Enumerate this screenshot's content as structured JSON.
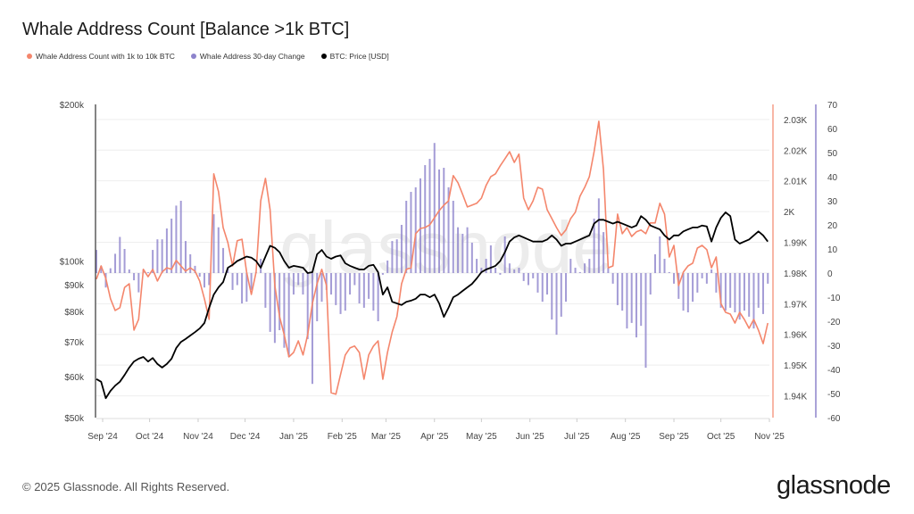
{
  "header": {
    "title": "Whale Address Count [Balance >1k BTC]"
  },
  "legend": [
    {
      "label": "Whale Address Count with 1k to 10k BTC",
      "color": "#f4866c"
    },
    {
      "label": "Whale Address 30-day Change",
      "color": "#8d83cc"
    },
    {
      "label": "BTC: Price [USD]",
      "color": "#000000"
    }
  ],
  "footer": {
    "copyright": "© 2025 Glassnode. All Rights Reserved.",
    "logo": "glassnode",
    "watermark": "glassnode"
  },
  "chart_data": {
    "type": "line+bar",
    "title": "Whale Address Count [Balance >1k BTC]",
    "grid": true,
    "legend_position": "top-left",
    "x_ticks": [
      {
        "date": "2024-09-01",
        "label": "Sep '24"
      },
      {
        "date": "2024-10-01",
        "label": "Oct '24"
      },
      {
        "date": "2024-11-01",
        "label": "Nov '24"
      },
      {
        "date": "2024-12-01",
        "label": "Dec '24"
      },
      {
        "date": "2025-01-01",
        "label": "Jan '25"
      },
      {
        "date": "2025-02-01",
        "label": "Feb '25"
      },
      {
        "date": "2025-03-01",
        "label": "Mar '25"
      },
      {
        "date": "2025-04-01",
        "label": "Apr '25"
      },
      {
        "date": "2025-05-01",
        "label": "May '25"
      },
      {
        "date": "2025-06-01",
        "label": "Jun '25"
      },
      {
        "date": "2025-07-01",
        "label": "Jul '25"
      },
      {
        "date": "2025-08-01",
        "label": "Aug '25"
      },
      {
        "date": "2025-09-01",
        "label": "Sep '25"
      },
      {
        "date": "2025-10-01",
        "label": "Oct '25"
      },
      {
        "date": "2025-11-01",
        "label": "Nov '25"
      }
    ],
    "xlim": [
      "2024-08-28",
      "2025-11-01"
    ],
    "axes": {
      "price": {
        "scale": "log",
        "range": [
          50000,
          200000
        ],
        "color": "#000000",
        "ticks": [
          {
            "v": 200000,
            "label": "$200k"
          },
          {
            "v": 100000,
            "label": "$100k"
          },
          {
            "v": 90000,
            "label": "$90k"
          },
          {
            "v": 80000,
            "label": "$80k"
          },
          {
            "v": 70000,
            "label": "$70k"
          },
          {
            "v": 60000,
            "label": "$60k"
          },
          {
            "v": 50000,
            "label": "$50k"
          }
        ]
      },
      "count": {
        "scale": "linear",
        "range": [
          1932.9,
          2034.9
        ],
        "color": "#f4866c",
        "ticks": [
          {
            "v": 2030,
            "label": "2.03K"
          },
          {
            "v": 2020,
            "label": "2.02K"
          },
          {
            "v": 2010,
            "label": "2.01K"
          },
          {
            "v": 2000,
            "label": "2K"
          },
          {
            "v": 1990,
            "label": "1.99K"
          },
          {
            "v": 1980,
            "label": "1.98K"
          },
          {
            "v": 1970,
            "label": "1.97K"
          },
          {
            "v": 1960,
            "label": "1.96K"
          },
          {
            "v": 1950,
            "label": "1.95K"
          },
          {
            "v": 1940,
            "label": "1.94K"
          }
        ]
      },
      "change": {
        "scale": "linear",
        "range": [
          -60,
          70
        ],
        "color": "#8d83cc",
        "ticks": [
          {
            "v": 70,
            "label": "70"
          },
          {
            "v": 60,
            "label": "60"
          },
          {
            "v": 50,
            "label": "50"
          },
          {
            "v": 40,
            "label": "40"
          },
          {
            "v": 30,
            "label": "30"
          },
          {
            "v": 20,
            "label": "20"
          },
          {
            "v": 10,
            "label": "10"
          },
          {
            "v": 0,
            "label": "0"
          },
          {
            "v": -10,
            "label": "-10"
          },
          {
            "v": -20,
            "label": "-20"
          },
          {
            "v": -30,
            "label": "-30"
          },
          {
            "v": -40,
            "label": "-40"
          },
          {
            "v": -50,
            "label": "-50"
          },
          {
            "v": -60,
            "label": "-60"
          }
        ]
      }
    },
    "dates": [
      "2024-08-28",
      "2024-08-31",
      "2024-09-03",
      "2024-09-06",
      "2024-09-09",
      "2024-09-12",
      "2024-09-15",
      "2024-09-18",
      "2024-09-21",
      "2024-09-24",
      "2024-09-27",
      "2024-09-30",
      "2024-10-03",
      "2024-10-06",
      "2024-10-09",
      "2024-10-12",
      "2024-10-15",
      "2024-10-18",
      "2024-10-21",
      "2024-10-24",
      "2024-10-27",
      "2024-10-30",
      "2024-11-02",
      "2024-11-05",
      "2024-11-08",
      "2024-11-11",
      "2024-11-14",
      "2024-11-17",
      "2024-11-20",
      "2024-11-23",
      "2024-11-26",
      "2024-11-29",
      "2024-12-02",
      "2024-12-05",
      "2024-12-08",
      "2024-12-11",
      "2024-12-14",
      "2024-12-17",
      "2024-12-20",
      "2024-12-23",
      "2024-12-26",
      "2024-12-29",
      "2025-01-01",
      "2025-01-04",
      "2025-01-07",
      "2025-01-10",
      "2025-01-13",
      "2025-01-16",
      "2025-01-19",
      "2025-01-22",
      "2025-01-25",
      "2025-01-28",
      "2025-01-31",
      "2025-02-03",
      "2025-02-06",
      "2025-02-09",
      "2025-02-12",
      "2025-02-15",
      "2025-02-18",
      "2025-02-21",
      "2025-02-24",
      "2025-02-27",
      "2025-03-02",
      "2025-03-05",
      "2025-03-08",
      "2025-03-11",
      "2025-03-14",
      "2025-03-17",
      "2025-03-20",
      "2025-03-23",
      "2025-03-26",
      "2025-03-29",
      "2025-04-01",
      "2025-04-04",
      "2025-04-07",
      "2025-04-10",
      "2025-04-13",
      "2025-04-16",
      "2025-04-19",
      "2025-04-22",
      "2025-04-25",
      "2025-04-28",
      "2025-05-01",
      "2025-05-04",
      "2025-05-07",
      "2025-05-10",
      "2025-05-13",
      "2025-05-16",
      "2025-05-19",
      "2025-05-22",
      "2025-05-25",
      "2025-05-28",
      "2025-05-31",
      "2025-06-03",
      "2025-06-06",
      "2025-06-09",
      "2025-06-12",
      "2025-06-15",
      "2025-06-18",
      "2025-06-21",
      "2025-06-24",
      "2025-06-27",
      "2025-06-30",
      "2025-07-03",
      "2025-07-06",
      "2025-07-09",
      "2025-07-12",
      "2025-07-15",
      "2025-07-18",
      "2025-07-21",
      "2025-07-24",
      "2025-07-27",
      "2025-07-30",
      "2025-08-02",
      "2025-08-05",
      "2025-08-08",
      "2025-08-11",
      "2025-08-14",
      "2025-08-17",
      "2025-08-20",
      "2025-08-23",
      "2025-08-26",
      "2025-08-29",
      "2025-09-01",
      "2025-09-04",
      "2025-09-07",
      "2025-09-10",
      "2025-09-13",
      "2025-09-16",
      "2025-09-19",
      "2025-09-22",
      "2025-09-25",
      "2025-09-28",
      "2025-10-01",
      "2025-10-04",
      "2025-10-07",
      "2025-10-10",
      "2025-10-13",
      "2025-10-16",
      "2025-10-19",
      "2025-10-22",
      "2025-10-25",
      "2025-10-28",
      "2025-10-31"
    ],
    "series": [
      {
        "name": "Whale Address 30-day Change",
        "axis": "change",
        "kind": "bar",
        "color": "#8d83cc",
        "values": [
          9.6,
          3,
          -6,
          2,
          8,
          15,
          10,
          1.5,
          -3,
          -8,
          1.5,
          0.4,
          9.6,
          14,
          14,
          18.5,
          22.6,
          28,
          30,
          13.3,
          7.8,
          3,
          -1.5,
          -6,
          -5,
          24.4,
          19,
          10.4,
          2.2,
          -7,
          -5,
          -12.6,
          -11.9,
          -7,
          0.4,
          5.9,
          -14.4,
          -24.4,
          -29,
          -23.7,
          -31,
          -34.8,
          -8.9,
          -5,
          -8.9,
          -27.4,
          -46,
          -20,
          -11.9,
          -7,
          -8.9,
          -13.3,
          -17,
          -15.6,
          -8.9,
          -5,
          -12.6,
          -14.4,
          -10.7,
          -15.6,
          -20,
          -0.7,
          5.2,
          13.3,
          14,
          20,
          30,
          33.7,
          35.6,
          39.3,
          44.8,
          47.4,
          54,
          43,
          43.7,
          35.6,
          30,
          19,
          16.3,
          19,
          12.6,
          5.9,
          2.2,
          5.9,
          11.5,
          2.2,
          -0.7,
          15.2,
          4,
          1.5,
          2.2,
          -3.3,
          -5,
          -2.2,
          -8.1,
          -11.9,
          -8.9,
          -19.3,
          -25.6,
          -18.1,
          -11.9,
          5.9,
          2.2,
          0.4,
          4,
          5.9,
          22.6,
          31,
          17,
          2.2,
          -4.4,
          -13.3,
          -15.6,
          -23,
          -20.7,
          -26.7,
          -21.9,
          -39.3,
          -8.9,
          7.8,
          15.2,
          5.9,
          0.4,
          -4.4,
          -10.7,
          -15.6,
          -16.3,
          -11.9,
          -8.1,
          -2.2,
          -4.4,
          1.5,
          -8.1,
          -14.4,
          -15.6,
          -14.4,
          -16.3,
          -19.3,
          -15.6,
          -18.1,
          -23,
          -14.4,
          -17,
          -4.4
        ]
      },
      {
        "name": "Whale Address Count with 1k to 10k BTC",
        "axis": "count",
        "kind": "line",
        "color": "#f4866c",
        "values": [
          1978,
          1982.3,
          1978.3,
          1971.6,
          1967.8,
          1968.7,
          1975.3,
          1976.5,
          1961.4,
          1964.9,
          1981.2,
          1978.8,
          1981.2,
          1977.4,
          1980.3,
          1981.7,
          1981.2,
          1984.1,
          1982.3,
          1980.6,
          1981.7,
          1980.6,
          1977.4,
          1971.6,
          1964.9,
          2012.3,
          2006.5,
          1994.8,
          1989.9,
          1982.3,
          1990.5,
          1991,
          1980.3,
          1973,
          1980.3,
          2003.5,
          2010.8,
          2000.6,
          1975.9,
          1965.8,
          1959.9,
          1952.7,
          1954.1,
          1957.9,
          1953.3,
          1959.9,
          1970.1,
          1976.5,
          1981.2,
          1975.9,
          1941,
          1940.5,
          1946.9,
          1953.3,
          1955.6,
          1956.2,
          1954.1,
          1945.4,
          1953.3,
          1956.2,
          1957.9,
          1945.4,
          1954.1,
          1960.8,
          1965.8,
          1976.5,
          1981.2,
          1981.7,
          1992.8,
          1994.5,
          1994.8,
          1995.7,
          1998,
          2000.3,
          2002.1,
          2003.5,
          2011.7,
          2009.4,
          2005.6,
          2001.5,
          2002.1,
          2002.7,
          2004.4,
          2008.5,
          2011.4,
          2012.3,
          2014.9,
          2017.2,
          2019.5,
          2016,
          2018.7,
          2004.4,
          2000.6,
          2003.5,
          2007.9,
          2007.3,
          2000.6,
          1997.7,
          1994.8,
          1992.2,
          1994,
          1997.7,
          1999.8,
          2005,
          2007.9,
          2011.4,
          2019.5,
          2029.4,
          2013.7,
          1981.7,
          1982.3,
          1999.2,
          1992.8,
          1994.8,
          1991.9,
          1993.4,
          1994,
          1992.8,
          1996.3,
          1996.3,
          2002.7,
          1999.2,
          1985.2,
          1989,
          1975.9,
          1980.3,
          1982.3,
          1983.2,
          1988.1,
          1989,
          1987.6,
          1981.7,
          1985.2,
          1970.1,
          1967.2,
          1966.6,
          1963.7,
          1967.2,
          1964.9,
          1962,
          1964.9,
          1961.4,
          1957,
          1963.7
        ]
      },
      {
        "name": "BTC: Price [USD]",
        "axis": "price",
        "kind": "line",
        "color": "#000000",
        "values": [
          59300,
          58600,
          54500,
          56300,
          57600,
          58600,
          60400,
          62400,
          64100,
          64900,
          65400,
          64100,
          65100,
          63400,
          62400,
          63400,
          64900,
          68000,
          69900,
          70800,
          71900,
          73000,
          74200,
          76000,
          81300,
          86200,
          89000,
          91100,
          97100,
          98300,
          100000,
          101000,
          102000,
          101500,
          100000,
          97100,
          102000,
          107000,
          106000,
          104000,
          100000,
          97100,
          97900,
          97500,
          97100,
          94800,
          95200,
          103000,
          105000,
          102000,
          101000,
          102000,
          102500,
          99000,
          97900,
          97100,
          96300,
          96300,
          97900,
          98300,
          95200,
          86200,
          89000,
          83500,
          82900,
          82300,
          83500,
          83900,
          84600,
          86200,
          86200,
          85200,
          86200,
          82900,
          78100,
          81300,
          85200,
          86200,
          87600,
          89000,
          90400,
          92600,
          95200,
          96300,
          97100,
          97900,
          100000,
          104000,
          109000,
          111000,
          112000,
          111000,
          110000,
          109000,
          109000,
          109000,
          110000,
          112000,
          110000,
          107000,
          108000,
          108000,
          109000,
          110000,
          111000,
          112000,
          118000,
          120000,
          120000,
          119000,
          118000,
          119000,
          118000,
          117000,
          116000,
          117000,
          122000,
          120000,
          117000,
          116000,
          115000,
          112000,
          110000,
          112000,
          112000,
          114000,
          115000,
          116000,
          116000,
          117000,
          116500,
          109000,
          116000,
          121000,
          124000,
          122000,
          110000,
          108000,
          109000,
          110000,
          112000,
          114000,
          112000,
          109000
        ]
      }
    ]
  }
}
